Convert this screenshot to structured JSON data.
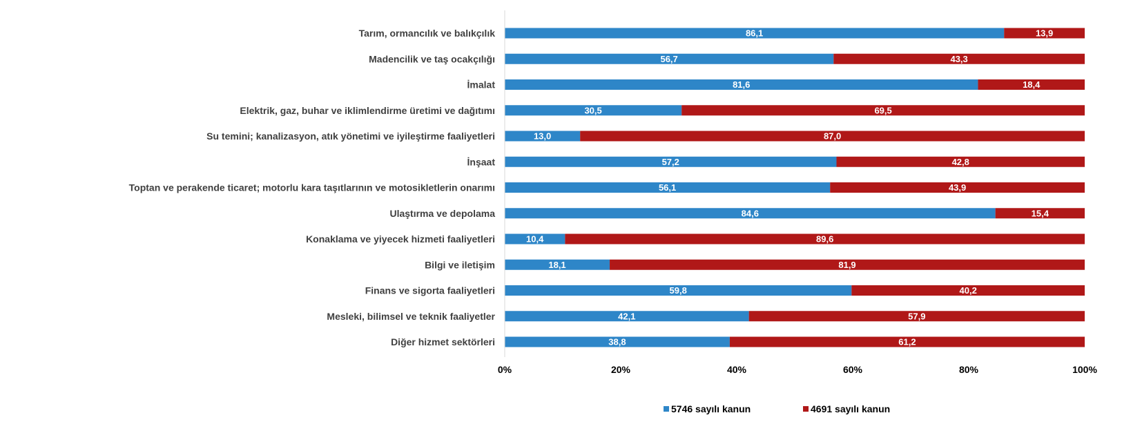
{
  "chart_data": {
    "type": "bar",
    "orientation": "horizontal",
    "stacked": true,
    "percent_stacked": true,
    "categories": [
      "Tarım, ormancılık ve balıkçılık",
      "Madencilik ve taş ocakçılığı",
      "İmalat",
      "Elektrik, gaz, buhar ve iklimlendirme üretimi ve dağıtımı",
      "Su temini; kanalizasyon, atık yönetimi ve iyileştirme faaliyetleri",
      "İnşaat",
      "Toptan ve perakende ticaret; motorlu kara taşıtlarının ve motosikletlerin onarımı",
      "Ulaştırma ve depolama",
      "Konaklama ve yiyecek hizmeti faaliyetleri",
      "Bilgi ve iletişim",
      "Finans ve sigorta faaliyetleri",
      "Mesleki, bilimsel ve teknik faaliyetler",
      "Diğer hizmet sektörleri"
    ],
    "series": [
      {
        "name": "5746 sayılı kanun",
        "color": "#2E86C8",
        "values": [
          86.1,
          56.7,
          81.6,
          30.5,
          13.0,
          57.2,
          56.1,
          84.6,
          10.4,
          18.1,
          59.8,
          42.1,
          38.8
        ],
        "labels": [
          "86,1",
          "56,7",
          "81,6",
          "30,5",
          "13,0",
          "57,2",
          "56,1",
          "84,6",
          "10,4",
          "18,1",
          "59,8",
          "42,1",
          "38,8"
        ]
      },
      {
        "name": "4691 sayılı kanun",
        "color": "#B01818",
        "values": [
          13.9,
          43.3,
          18.4,
          69.5,
          87.0,
          42.8,
          43.9,
          15.4,
          89.6,
          81.9,
          40.2,
          57.9,
          61.2
        ],
        "labels": [
          "13,9",
          "43,3",
          "18,4",
          "69,5",
          "87,0",
          "42,8",
          "43,9",
          "15,4",
          "89,6",
          "81,9",
          "40,2",
          "57,9",
          "61,2"
        ]
      }
    ],
    "x_ticks": [
      "0%",
      "20%",
      "40%",
      "60%",
      "80%",
      "100%"
    ],
    "xlim": [
      0,
      100
    ],
    "title": "",
    "xlabel": "",
    "ylabel": "",
    "grid": false,
    "legend_position": "bottom"
  }
}
